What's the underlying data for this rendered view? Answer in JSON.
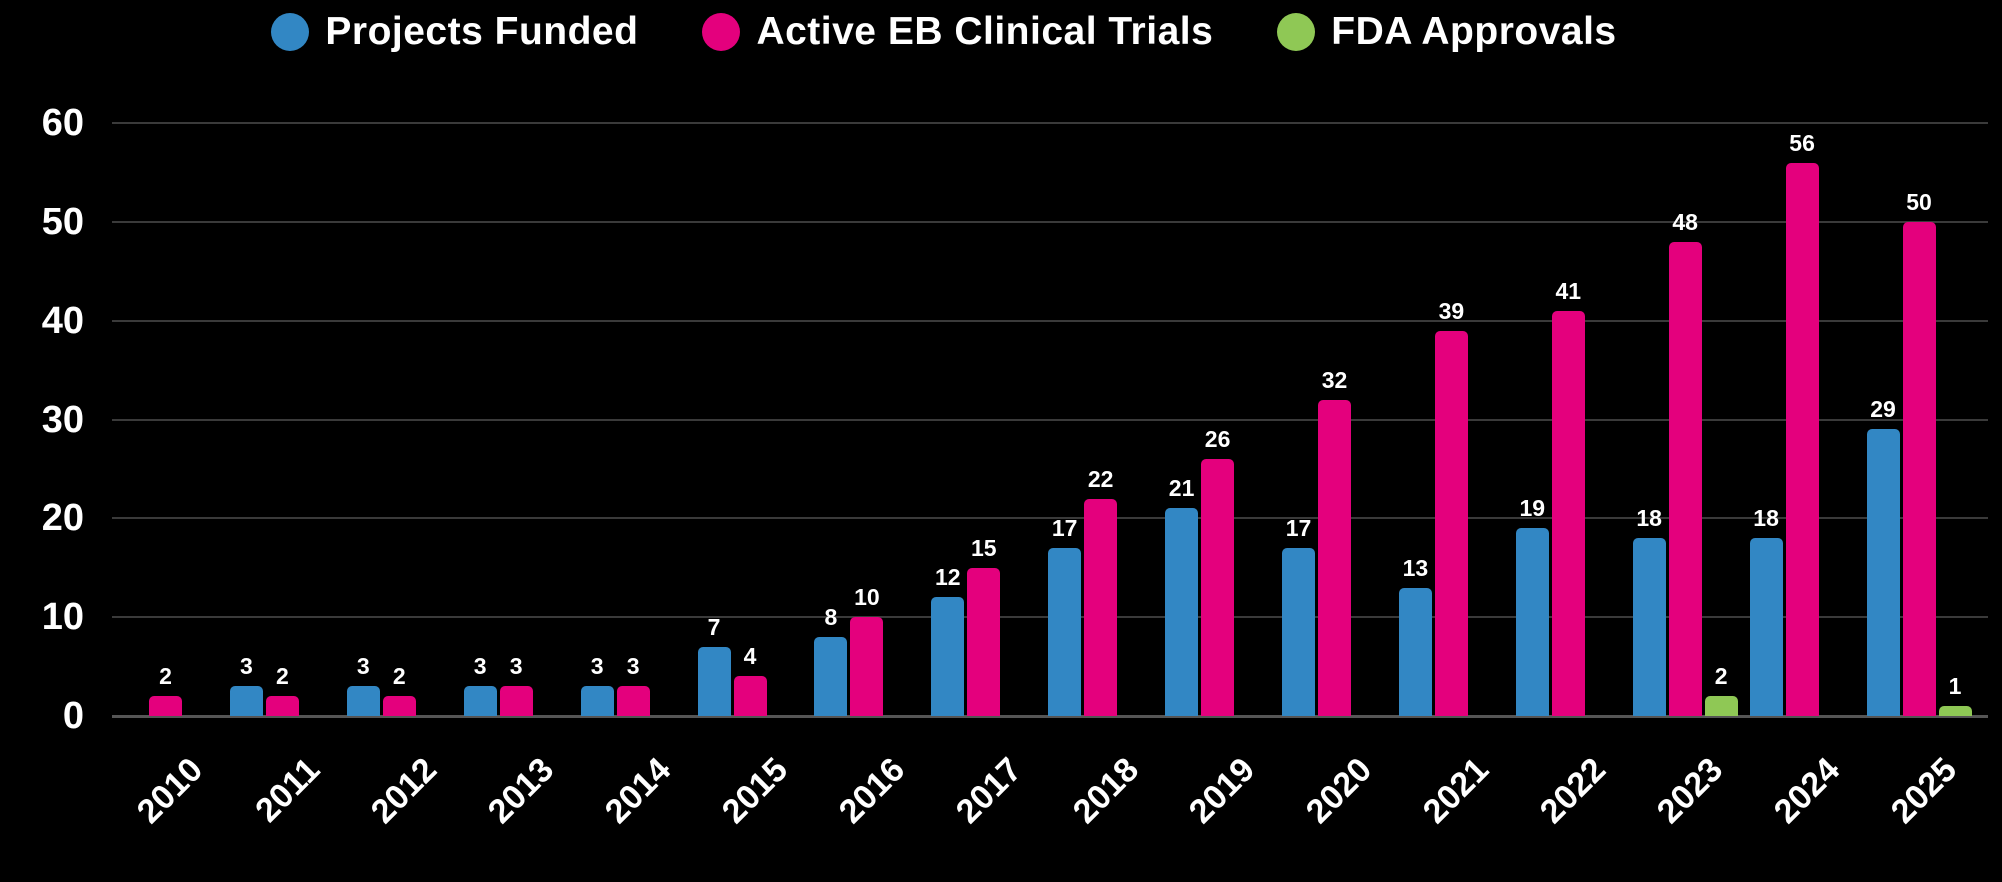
{
  "legend": [
    {
      "label": "Projects Funded",
      "color": "#3287C4"
    },
    {
      "label": "Active EB Clinical Trials",
      "color": "#E4007D"
    },
    {
      "label": "FDA Approvals",
      "color": "#8FC855"
    }
  ],
  "chart_data": {
    "type": "bar",
    "title": "",
    "xlabel": "",
    "ylabel": "",
    "background": "#000000",
    "grid": true,
    "legend_position": "top",
    "ylim": [
      0,
      60
    ],
    "yticks": [
      0,
      10,
      20,
      30,
      40,
      50,
      60
    ],
    "categories": [
      "2010",
      "2011",
      "2012",
      "2013",
      "2014",
      "2015",
      "2016",
      "2017",
      "2018",
      "2019",
      "2020",
      "2021",
      "2022",
      "2023",
      "2024",
      "2025"
    ],
    "series": [
      {
        "name": "Projects Funded",
        "color": "#3287C4",
        "values": [
          null,
          3,
          3,
          3,
          3,
          7,
          8,
          12,
          17,
          21,
          17,
          13,
          19,
          18,
          18,
          29
        ]
      },
      {
        "name": "Active EB Clinical Trials",
        "color": "#E4007D",
        "values": [
          2,
          2,
          2,
          3,
          3,
          4,
          10,
          15,
          22,
          26,
          32,
          39,
          41,
          48,
          56,
          50
        ]
      },
      {
        "name": "FDA Approvals",
        "color": "#8FC855",
        "values": [
          null,
          null,
          null,
          null,
          null,
          null,
          null,
          null,
          null,
          null,
          null,
          null,
          null,
          2,
          null,
          1
        ]
      }
    ],
    "text_color": "#FFFFFF",
    "gridline_color": "#3A3A3A",
    "axis_line_color": "#555555"
  }
}
